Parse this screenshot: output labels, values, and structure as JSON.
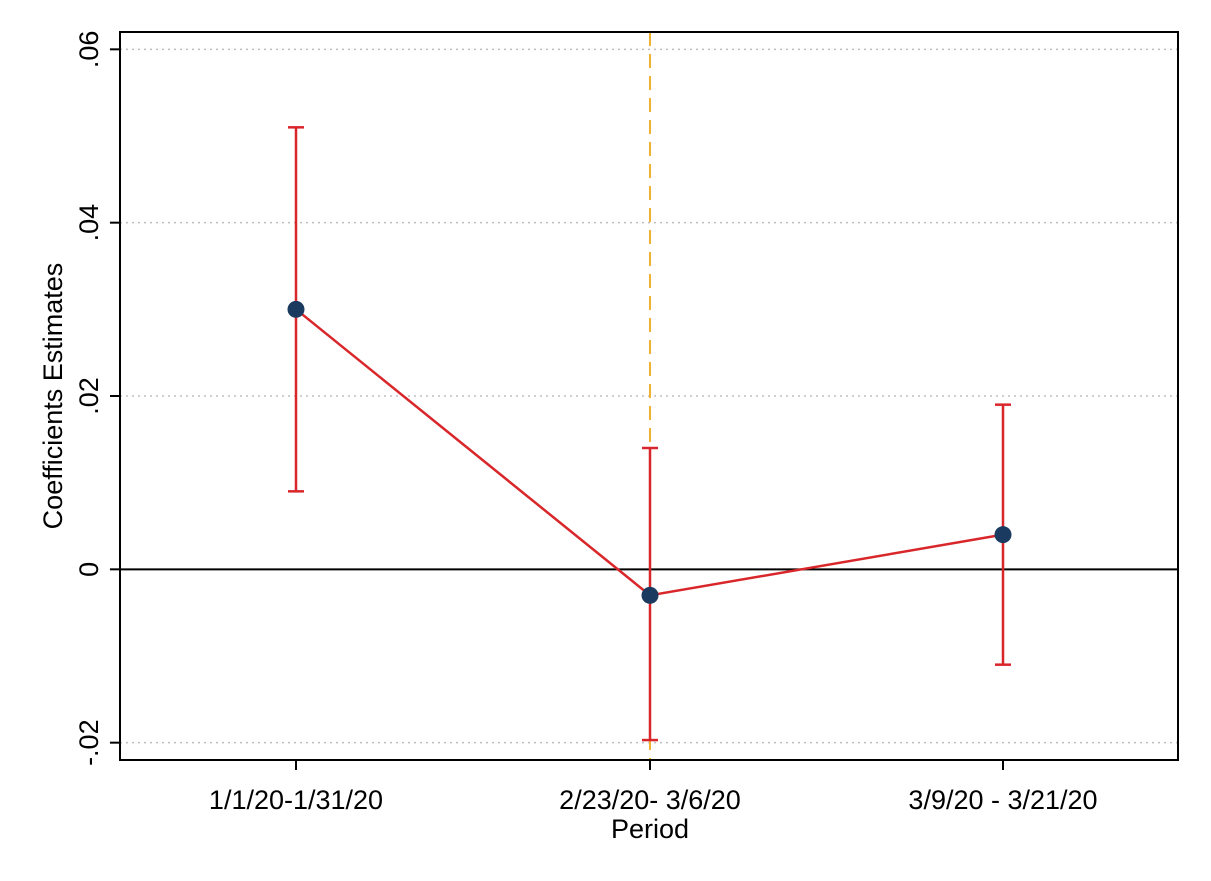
{
  "chart_data": {
    "type": "scatter",
    "title": "",
    "xlabel": "Period",
    "ylabel": "Coefficients Estimates",
    "categories": [
      "1/1/20-1/31/20",
      "2/23/20- 3/6/20",
      "3/9/20 - 3/21/20"
    ],
    "ylim": [
      -0.022,
      0.062
    ],
    "y_ticks": [
      {
        "value": -0.02,
        "label": "-.02"
      },
      {
        "value": 0,
        "label": "0"
      },
      {
        "value": 0.02,
        "label": ".02"
      },
      {
        "value": 0.04,
        "label": ".04"
      },
      {
        "value": 0.06,
        "label": ".06"
      }
    ],
    "series": [
      {
        "estimates": [
          0.03,
          -0.003,
          0.004
        ],
        "ci_lower": [
          0.009,
          -0.0197,
          -0.011
        ],
        "ci_upper": [
          0.051,
          0.014,
          0.019
        ]
      }
    ],
    "reference_lines": {
      "horizontal_y": 0,
      "vertical_category_index": 1
    },
    "grid": true,
    "legend": "none"
  },
  "colors": {
    "estimate_line": "#d9262a",
    "error_bar": "#d9262a",
    "marker": "#1a3a5f",
    "vertical_line": "#f0b030",
    "zero_line": "#000000",
    "grid": "#bfbfbf",
    "frame": "#000000"
  }
}
